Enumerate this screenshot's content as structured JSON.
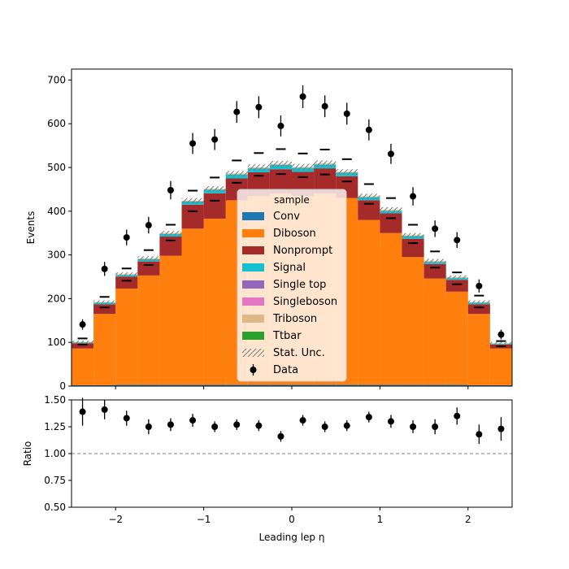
{
  "chart_data": [
    {
      "panel": "main",
      "type": "bar",
      "stacked": true,
      "xlabel": "",
      "ylabel": "Events",
      "ylim": [
        0,
        725
      ],
      "yticks": [
        0,
        100,
        200,
        300,
        400,
        500,
        600,
        700
      ],
      "x_edges": [
        -2.5,
        -2.25,
        -2.0,
        -1.75,
        -1.5,
        -1.25,
        -1.0,
        -0.75,
        -0.5,
        -0.25,
        0.0,
        0.25,
        0.5,
        0.75,
        1.0,
        1.25,
        1.5,
        1.75,
        2.0,
        2.25,
        2.5
      ],
      "x_centers": [
        -2.375,
        -2.125,
        -1.875,
        -1.625,
        -1.375,
        -1.125,
        -0.875,
        -0.625,
        -0.375,
        -0.125,
        0.125,
        0.375,
        0.625,
        0.875,
        1.125,
        1.375,
        1.625,
        1.875,
        2.125,
        2.375
      ],
      "series": [
        {
          "name": "Conv",
          "color": "#1f77b4",
          "values": [
            2,
            2,
            3,
            3,
            3,
            3,
            3,
            3,
            3,
            3,
            3,
            3,
            3,
            3,
            3,
            3,
            3,
            3,
            2,
            2
          ]
        },
        {
          "name": "Diboson",
          "color": "#ff7f0e",
          "values": [
            84,
            163,
            220,
            250,
            295,
            357,
            380,
            422,
            432,
            437,
            432,
            437,
            427,
            377,
            347,
            292,
            243,
            213,
            163,
            84
          ]
        },
        {
          "name": "Nonprompt",
          "color": "#a52a2a",
          "values": [
            12,
            22,
            27,
            32,
            44,
            55,
            58,
            50,
            54,
            56,
            55,
            58,
            50,
            45,
            45,
            42,
            33,
            27,
            22,
            9
          ]
        },
        {
          "name": "Signal",
          "color": "#17becf",
          "values": [
            2,
            4,
            4,
            5,
            6,
            7,
            8,
            9,
            9,
            10,
            9,
            9,
            8,
            7,
            6,
            6,
            5,
            4,
            4,
            2
          ]
        },
        {
          "name": "Single top",
          "color": "#9467bd",
          "values": [
            0,
            0,
            0,
            0,
            0,
            0,
            0,
            0,
            0,
            0,
            0,
            0,
            0,
            0,
            0,
            0,
            0,
            0,
            0,
            0
          ]
        },
        {
          "name": "Singleboson",
          "color": "#e377c2",
          "values": [
            0,
            0,
            0,
            0,
            0,
            0,
            0,
            0,
            0,
            0,
            0,
            0,
            0,
            0,
            0,
            0,
            0,
            0,
            0,
            0
          ]
        },
        {
          "name": "Triboson",
          "color": "#deb887",
          "values": [
            1,
            1,
            2,
            2,
            2,
            2,
            2,
            2,
            2,
            2,
            2,
            2,
            2,
            2,
            2,
            2,
            2,
            2,
            1,
            1
          ]
        },
        {
          "name": "Ttbar",
          "color": "#2ca02c",
          "values": [
            0,
            0,
            0,
            0,
            0,
            0,
            0,
            0,
            0,
            0,
            0,
            0,
            0,
            0,
            0,
            0,
            0,
            0,
            0,
            0
          ]
        }
      ],
      "stat_unc": [
        3,
        4,
        4,
        5,
        5,
        6,
        6,
        6,
        7,
        7,
        7,
        7,
        6,
        6,
        6,
        5,
        5,
        4,
        4,
        3
      ],
      "stat_unc_label": "Stat. Unc.",
      "data": {
        "name": "Data",
        "values": [
          141,
          268,
          340,
          368,
          448,
          555,
          564,
          627,
          638,
          595,
          662,
          640,
          623,
          586,
          531,
          434,
          360,
          334,
          229,
          118
        ],
        "errors": [
          12,
          16,
          18,
          19,
          21,
          24,
          24,
          25,
          25,
          24,
          26,
          25,
          25,
          24,
          23,
          21,
          19,
          18,
          15,
          11
        ]
      },
      "up_markers": [
        109,
        204,
        269,
        311,
        369,
        447,
        477,
        516,
        533,
        542,
        532,
        541,
        519,
        462,
        430,
        369,
        308,
        260,
        207,
        103
      ],
      "down_markers": [
        95,
        180,
        241,
        277,
        333,
        400,
        424,
        465,
        481,
        485,
        478,
        484,
        468,
        417,
        384,
        327,
        271,
        233,
        180,
        91
      ],
      "legend": {
        "title": "sample",
        "placement": "lower-center"
      }
    },
    {
      "panel": "ratio",
      "type": "scatter",
      "xlabel": "Leading lep η",
      "ylabel": "Ratio",
      "xlim": [
        -2.5,
        2.5
      ],
      "xticks": [
        -2,
        -1,
        0,
        1,
        2
      ],
      "xtick_labels": [
        "−2",
        "−1",
        "0",
        "1",
        "2"
      ],
      "ylim": [
        0.5,
        1.5
      ],
      "yticks": [
        0.5,
        0.75,
        1.0,
        1.25,
        1.5
      ],
      "ytick_labels": [
        "0.50",
        "0.75",
        "1.00",
        "1.25",
        "1.50"
      ],
      "reference_line": 1.0,
      "values": [
        1.39,
        1.41,
        1.33,
        1.25,
        1.27,
        1.31,
        1.25,
        1.27,
        1.26,
        1.16,
        1.31,
        1.25,
        1.26,
        1.34,
        1.3,
        1.25,
        1.25,
        1.35,
        1.18,
        1.23
      ],
      "errors": [
        0.13,
        0.09,
        0.07,
        0.07,
        0.06,
        0.06,
        0.05,
        0.05,
        0.05,
        0.05,
        0.05,
        0.05,
        0.05,
        0.05,
        0.06,
        0.06,
        0.07,
        0.08,
        0.09,
        0.11
      ]
    }
  ]
}
